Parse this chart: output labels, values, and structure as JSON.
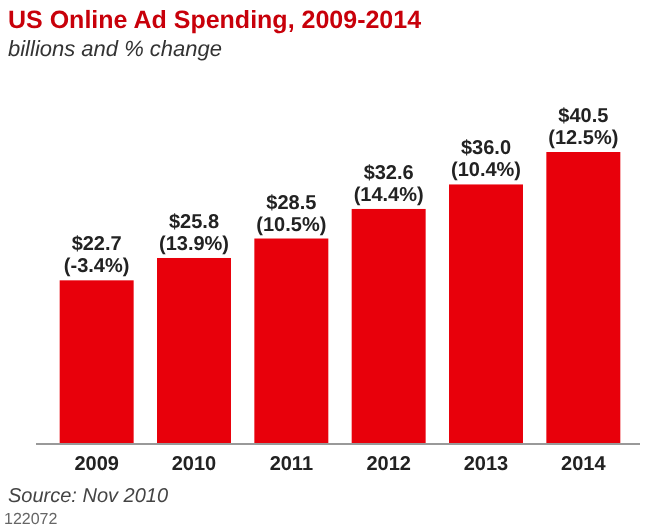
{
  "chart_data": {
    "type": "bar",
    "title": "US Online Ad Spending, 2009-2014",
    "subtitle": "billions and % change",
    "categories": [
      "2009",
      "2010",
      "2011",
      "2012",
      "2013",
      "2014"
    ],
    "values": [
      22.7,
      25.8,
      28.5,
      32.6,
      36.0,
      40.5
    ],
    "color": "#e8000b",
    "value_labels": [
      "$22.7 (-3.4%)",
      "$25.8 (13.9%)",
      "$28.5 (10.5%)",
      "$32.6 (14.4%)",
      "$36.0 (10.4%)",
      "$40.5 (12.5%)"
    ],
    "annotations": [
      "Source: Nov 2010",
      "122072"
    ]
  }
}
